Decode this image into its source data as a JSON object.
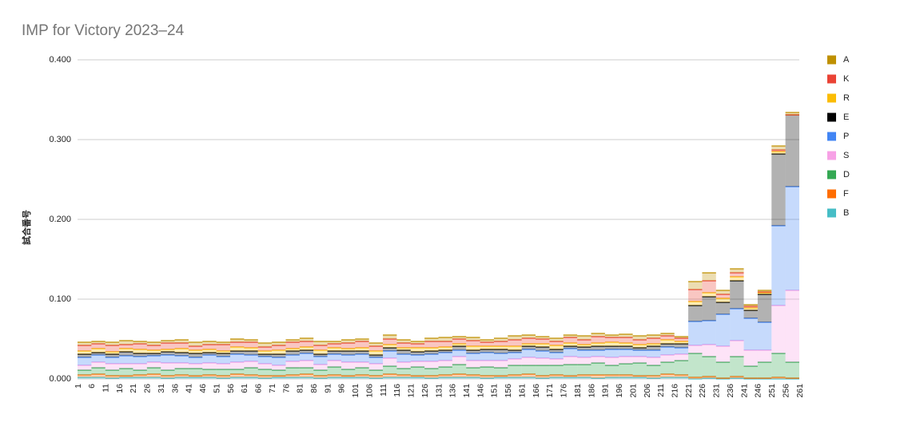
{
  "chart_data": {
    "type": "stacked-step-area",
    "title": "IMP for Victory 2023–24",
    "y_label": "試合番号",
    "x": [
      1,
      6,
      11,
      16,
      21,
      26,
      31,
      36,
      41,
      46,
      51,
      56,
      61,
      66,
      71,
      76,
      81,
      86,
      91,
      96,
      101,
      106,
      111,
      116,
      121,
      126,
      131,
      136,
      141,
      146,
      151,
      156,
      161,
      166,
      171,
      176,
      181,
      186,
      191,
      196,
      201,
      206,
      211,
      216,
      221,
      226,
      231,
      236,
      241,
      246,
      251,
      256,
      261
    ],
    "xlim": [
      1,
      261
    ],
    "xticks": [
      1,
      6,
      11,
      16,
      21,
      26,
      31,
      36,
      41,
      46,
      51,
      56,
      61,
      66,
      71,
      76,
      81,
      86,
      91,
      96,
      101,
      106,
      111,
      116,
      121,
      126,
      131,
      136,
      141,
      146,
      151,
      156,
      161,
      166,
      171,
      176,
      181,
      186,
      191,
      196,
      201,
      206,
      211,
      216,
      221,
      226,
      231,
      236,
      241,
      246,
      251,
      256,
      261
    ],
    "ylim": [
      0,
      0.4
    ],
    "yticks": [
      {
        "value": 0,
        "label": "0.000"
      },
      {
        "value": 0.1,
        "label": "0.100"
      },
      {
        "value": 0.2,
        "label": "0.200"
      },
      {
        "value": 0.3,
        "label": "0.300"
      },
      {
        "value": 0.4,
        "label": "0.400"
      }
    ],
    "grid": true,
    "legend": "right",
    "series": [
      {
        "name": "A",
        "color": "#bf9000",
        "values": [
          0.004,
          0.003,
          0.004,
          0.005,
          0.003,
          0.004,
          0.003,
          0.004,
          0.005,
          0.004,
          0.003,
          0.004,
          0.003,
          0.005,
          0.004,
          0.003,
          0.004,
          0.005,
          0.003,
          0.004,
          0.003,
          0.004,
          0.005,
          0.004,
          0.003,
          0.004,
          0.005,
          0.003,
          0.004,
          0.003,
          0.004,
          0.005,
          0.004,
          0.003,
          0.004,
          0.003,
          0.005,
          0.004,
          0.003,
          0.004,
          0.005,
          0.004,
          0.003,
          0.002,
          0.01,
          0.01,
          0.005,
          0.005,
          0.002,
          0.002,
          0.005,
          0.003,
          0
        ]
      },
      {
        "name": "K",
        "color": "#ea4335",
        "values": [
          0.007,
          0.006,
          0.008,
          0.005,
          0.007,
          0.006,
          0.008,
          0.007,
          0.005,
          0.006,
          0.008,
          0.006,
          0.007,
          0.005,
          0.006,
          0.008,
          0.007,
          0.006,
          0.005,
          0.007,
          0.008,
          0.006,
          0.007,
          0.006,
          0.005,
          0.008,
          0.007,
          0.006,
          0.007,
          0.005,
          0.006,
          0.008,
          0.007,
          0.006,
          0.005,
          0.007,
          0.006,
          0.008,
          0.006,
          0.007,
          0.006,
          0.007,
          0.005,
          0.004,
          0.015,
          0.015,
          0.005,
          0.005,
          0.002,
          0.001,
          0.002,
          0,
          0
        ]
      },
      {
        "name": "R",
        "color": "#fbbc04",
        "values": [
          0.004,
          0.005,
          0.003,
          0.004,
          0.005,
          0.004,
          0.003,
          0.005,
          0.004,
          0.004,
          0.003,
          0.005,
          0.004,
          0.004,
          0.005,
          0.003,
          0.004,
          0.005,
          0.004,
          0.003,
          0.004,
          0.005,
          0.004,
          0.003,
          0.005,
          0.004,
          0.004,
          0.003,
          0.005,
          0.004,
          0.004,
          0.005,
          0.003,
          0.004,
          0.005,
          0.004,
          0.003,
          0.004,
          0.005,
          0.004,
          0.004,
          0.003,
          0.005,
          0.003,
          0.005,
          0.005,
          0.005,
          0.005,
          0.003,
          0.002,
          0.003,
          0,
          0
        ]
      },
      {
        "name": "E",
        "color": "#000000",
        "values": [
          0.004,
          0.003,
          0.004,
          0.005,
          0.004,
          0.003,
          0.004,
          0.004,
          0.005,
          0.003,
          0.004,
          0.004,
          0.005,
          0.003,
          0.004,
          0.005,
          0.004,
          0.003,
          0.004,
          0.005,
          0.004,
          0.003,
          0.004,
          0.005,
          0.004,
          0.004,
          0.003,
          0.005,
          0.004,
          0.004,
          0.005,
          0.003,
          0.004,
          0.005,
          0.004,
          0.003,
          0.004,
          0.005,
          0.004,
          0.004,
          0.003,
          0.005,
          0.004,
          0.005,
          0.02,
          0.03,
          0.015,
          0.035,
          0.01,
          0.035,
          0.09,
          0.09,
          0
        ]
      },
      {
        "name": "P",
        "color": "#4285f4",
        "values": [
          0.01,
          0.009,
          0.008,
          0.01,
          0.009,
          0.008,
          0.01,
          0.009,
          0.008,
          0.01,
          0.009,
          0.01,
          0.008,
          0.009,
          0.01,
          0.008,
          0.009,
          0.01,
          0.008,
          0.009,
          0.01,
          0.008,
          0.009,
          0.01,
          0.008,
          0.009,
          0.01,
          0.008,
          0.009,
          0.01,
          0.009,
          0.008,
          0.01,
          0.009,
          0.008,
          0.01,
          0.009,
          0.008,
          0.01,
          0.009,
          0.008,
          0.009,
          0.01,
          0.008,
          0.03,
          0.03,
          0.04,
          0.04,
          0.04,
          0.035,
          0.1,
          0.13,
          0
        ]
      },
      {
        "name": "S",
        "color": "#f7a1e6",
        "values": [
          0.006,
          0.007,
          0.008,
          0.006,
          0.008,
          0.007,
          0.009,
          0.007,
          0.006,
          0.008,
          0.007,
          0.009,
          0.008,
          0.007,
          0.006,
          0.008,
          0.009,
          0.007,
          0.008,
          0.009,
          0.007,
          0.008,
          0.01,
          0.008,
          0.007,
          0.009,
          0.008,
          0.01,
          0.009,
          0.008,
          0.009,
          0.008,
          0.01,
          0.009,
          0.008,
          0.01,
          0.009,
          0.008,
          0.01,
          0.009,
          0.008,
          0.01,
          0.009,
          0.008,
          0.01,
          0.015,
          0.02,
          0.02,
          0.02,
          0.015,
          0.06,
          0.09,
          0
        ]
      },
      {
        "name": "D",
        "color": "#34a853",
        "values": [
          0.006,
          0.008,
          0.007,
          0.009,
          0.006,
          0.008,
          0.007,
          0.008,
          0.009,
          0.007,
          0.008,
          0.006,
          0.009,
          0.008,
          0.007,
          0.009,
          0.008,
          0.007,
          0.01,
          0.008,
          0.009,
          0.007,
          0.01,
          0.008,
          0.011,
          0.009,
          0.01,
          0.012,
          0.009,
          0.011,
          0.01,
          0.012,
          0.011,
          0.013,
          0.012,
          0.014,
          0.013,
          0.015,
          0.012,
          0.014,
          0.016,
          0.013,
          0.015,
          0.018,
          0.03,
          0.025,
          0.02,
          0.025,
          0.015,
          0.02,
          0.03,
          0.02,
          0
        ]
      },
      {
        "name": "F",
        "color": "#ff6d01",
        "values": [
          0.003,
          0.004,
          0.003,
          0.002,
          0.003,
          0.004,
          0.003,
          0.003,
          0.002,
          0.003,
          0.003,
          0.004,
          0.003,
          0.003,
          0.002,
          0.003,
          0.004,
          0.003,
          0.003,
          0.002,
          0.003,
          0.003,
          0.004,
          0.003,
          0.002,
          0.003,
          0.003,
          0.004,
          0.003,
          0.003,
          0.002,
          0.003,
          0.004,
          0.003,
          0.003,
          0.002,
          0.003,
          0.004,
          0.003,
          0.003,
          0.002,
          0.003,
          0.004,
          0.003,
          0.002,
          0.002,
          0.001,
          0.002,
          0.001,
          0.001,
          0.002,
          0.001,
          0
        ]
      },
      {
        "name": "B",
        "color": "#46bdc6",
        "values": [
          0.002,
          0.002,
          0.001,
          0.002,
          0.002,
          0.002,
          0.001,
          0.002,
          0.002,
          0.002,
          0.001,
          0.002,
          0.002,
          0.001,
          0.002,
          0.002,
          0.002,
          0.001,
          0.002,
          0.002,
          0.002,
          0.001,
          0.002,
          0.002,
          0.002,
          0.001,
          0.002,
          0.002,
          0.002,
          0.001,
          0.002,
          0.002,
          0.002,
          0.001,
          0.002,
          0.002,
          0.002,
          0.001,
          0.002,
          0.002,
          0.002,
          0.001,
          0.002,
          0.002,
          0,
          0.001,
          0,
          0.001,
          0,
          0,
          0,
          0,
          0
        ]
      }
    ]
  }
}
